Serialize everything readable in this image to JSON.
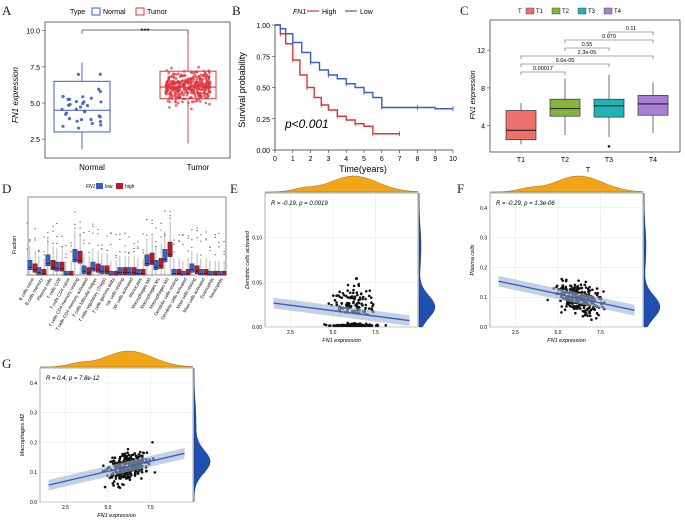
{
  "chart_data": [
    {
      "id": "A",
      "type": "box",
      "legend_title": "Type",
      "legend": [
        "Normal",
        "Tumor"
      ],
      "categories": [
        "Normal",
        "Tumor"
      ],
      "ylabel": "FN1 expression",
      "yticks": [
        "2.5",
        "5.0",
        "7.5",
        "10.0"
      ],
      "ylim": [
        1.2,
        10.6
      ],
      "boxes": [
        {
          "name": "Normal",
          "color": "#3a5fc4",
          "q1": 3.0,
          "median": 4.5,
          "q3": 6.5,
          "lo": 1.8,
          "hi": 7.8
        },
        {
          "name": "Tumor",
          "color": "#e0323a",
          "q1": 5.3,
          "median": 6.1,
          "q3": 7.2,
          "lo": 2.2,
          "hi": 10.0
        }
      ],
      "significance": "***"
    },
    {
      "id": "B",
      "type": "line",
      "legend_title": "FN1",
      "legend": [
        "High",
        "Low"
      ],
      "xlabel": "Time(years)",
      "ylabel": "Survival probability",
      "xticks": [
        "0",
        "1",
        "2",
        "3",
        "4",
        "5",
        "6",
        "7",
        "8",
        "9",
        "10"
      ],
      "yticks": [
        "0.00",
        "0.25",
        "0.50",
        "0.75",
        "1.00"
      ],
      "annotation": "p<0.001",
      "series": [
        {
          "name": "High",
          "color": "#e0323a",
          "x": [
            0,
            0.3,
            0.6,
            1,
            1.4,
            1.8,
            2.2,
            2.6,
            3,
            3.5,
            4,
            4.5,
            5,
            5.5,
            6,
            7
          ],
          "y": [
            1,
            0.93,
            0.85,
            0.72,
            0.6,
            0.5,
            0.42,
            0.36,
            0.32,
            0.27,
            0.24,
            0.21,
            0.19,
            0.13,
            0.13,
            0.13
          ]
        },
        {
          "name": "Low",
          "color": "#3a5fc4",
          "x": [
            0,
            0.3,
            0.6,
            1,
            1.5,
            2,
            2.5,
            3,
            3.5,
            4,
            4.5,
            5,
            5.5,
            6,
            7,
            8,
            9,
            10
          ],
          "y": [
            1,
            0.97,
            0.93,
            0.86,
            0.78,
            0.7,
            0.64,
            0.6,
            0.57,
            0.53,
            0.5,
            0.46,
            0.42,
            0.34,
            0.34,
            0.34,
            0.33,
            0.33
          ]
        }
      ]
    },
    {
      "id": "C",
      "type": "box",
      "legend_title": "T",
      "legend": [
        "T1",
        "T2",
        "T3",
        "T4"
      ],
      "categories": [
        "T1",
        "T2",
        "T3",
        "T4"
      ],
      "xlabel": "T",
      "ylabel": "FN1 expression",
      "yticks": [
        "4",
        "8",
        "12"
      ],
      "ylim": [
        1.2,
        15.2
      ],
      "boxes": [
        {
          "name": "T1",
          "color": "#ef6f6a",
          "q1": 2.5,
          "median": 3.5,
          "q3": 5.6,
          "lo": 2.0,
          "hi": 6.4
        },
        {
          "name": "T2",
          "color": "#86b33a",
          "q1": 5.0,
          "median": 5.8,
          "q3": 6.8,
          "lo": 3.0,
          "hi": 9.0
        },
        {
          "name": "T3",
          "color": "#1fb4b3",
          "q1": 4.9,
          "median": 6.1,
          "q3": 6.8,
          "lo": 2.8,
          "hi": 9.4
        },
        {
          "name": "T4",
          "color": "#a97fd2",
          "q1": 5.1,
          "median": 6.3,
          "q3": 7.2,
          "lo": 3.2,
          "hi": 8.6
        }
      ],
      "comparisons": [
        {
          "from": 0,
          "to": 1,
          "label": "0.00017"
        },
        {
          "from": 0,
          "to": 2,
          "label": "9.6e-05"
        },
        {
          "from": 0,
          "to": 3,
          "label": "2.3e-05"
        },
        {
          "from": 1,
          "to": 2,
          "label": "0.55"
        },
        {
          "from": 1,
          "to": 3,
          "label": "0.079"
        },
        {
          "from": 2,
          "to": 3,
          "label": "0.11"
        }
      ]
    },
    {
      "id": "D",
      "type": "box",
      "legend_title": "FN1",
      "legend": [
        "low",
        "high"
      ],
      "ylabel": "Fraction",
      "categories": [
        "B cells naive",
        "B cells memory",
        "Plasma cells",
        "T cells CD8",
        "T cells CD4 naive",
        "T cells CD4 memory resting",
        "T cells CD4 memory activated",
        "T cells follicular helper",
        "T cells regulatory (Tregs)",
        "T cells gamma delta",
        "NK cells resting",
        "NK cells activated",
        "Monocytes",
        "Macrophages M0",
        "Macrophages M1",
        "Macrophages M2",
        "Dendritic cells resting",
        "Dendritic cells activated",
        "Mast cells resting",
        "Mast cells activated",
        "Eosinophils",
        "Neutrophils"
      ],
      "low_median": [
        0.06,
        0.02,
        0.09,
        0.05,
        0.0,
        0.12,
        0.03,
        0.05,
        0.03,
        0.0,
        0.02,
        0.02,
        0.01,
        0.09,
        0.06,
        0.12,
        0.01,
        0.0,
        0.04,
        0.01,
        0.0,
        0.0
      ],
      "high_median": [
        0.04,
        0.01,
        0.06,
        0.05,
        0.0,
        0.11,
        0.02,
        0.04,
        0.03,
        0.0,
        0.02,
        0.02,
        0.01,
        0.1,
        0.07,
        0.16,
        0.01,
        0.01,
        0.03,
        0.01,
        0.0,
        0.0
      ]
    },
    {
      "id": "E",
      "type": "scatter",
      "xlabel": "FN1 expression",
      "ylabel": "Dendritic cells activated",
      "annotation": "R = -0.19, p = 0.0019",
      "xticks": [
        "2.5",
        "5.0",
        "7.5"
      ],
      "yticks": [
        "0.00",
        "0.05",
        "0.10"
      ],
      "xlim": [
        1,
        10
      ],
      "ylim": [
        0,
        0.15
      ],
      "fit": {
        "y_at_xmin": 0.028,
        "y_at_xmax": 0.006
      }
    },
    {
      "id": "F",
      "type": "scatter",
      "xlabel": "FN1 expression",
      "ylabel": "Plasma cells",
      "annotation": "R = -0.29, p = 1.3e-06",
      "xticks": [
        "2.5",
        "5.0",
        "7.5"
      ],
      "yticks": [
        "0.0",
        "0.1",
        "0.2",
        "0.3",
        "0.4"
      ],
      "xlim": [
        1,
        10
      ],
      "ylim": [
        0,
        0.45
      ],
      "fit": {
        "y_at_xmin": 0.16,
        "y_at_xmax": 0.05
      }
    },
    {
      "id": "G",
      "type": "scatter",
      "xlabel": "FN1 expression",
      "ylabel": "Macrophages M2",
      "annotation": "R = 0.4, p = 7.8e-12",
      "xticks": [
        "2.5",
        "5.0",
        "7.5"
      ],
      "yticks": [
        "0.0",
        "0.1",
        "0.2",
        "0.3",
        "0.4"
      ],
      "xlim": [
        1,
        10
      ],
      "ylim": [
        0,
        0.45
      ],
      "fit": {
        "y_at_xmin": 0.05,
        "y_at_xmax": 0.17
      }
    }
  ]
}
